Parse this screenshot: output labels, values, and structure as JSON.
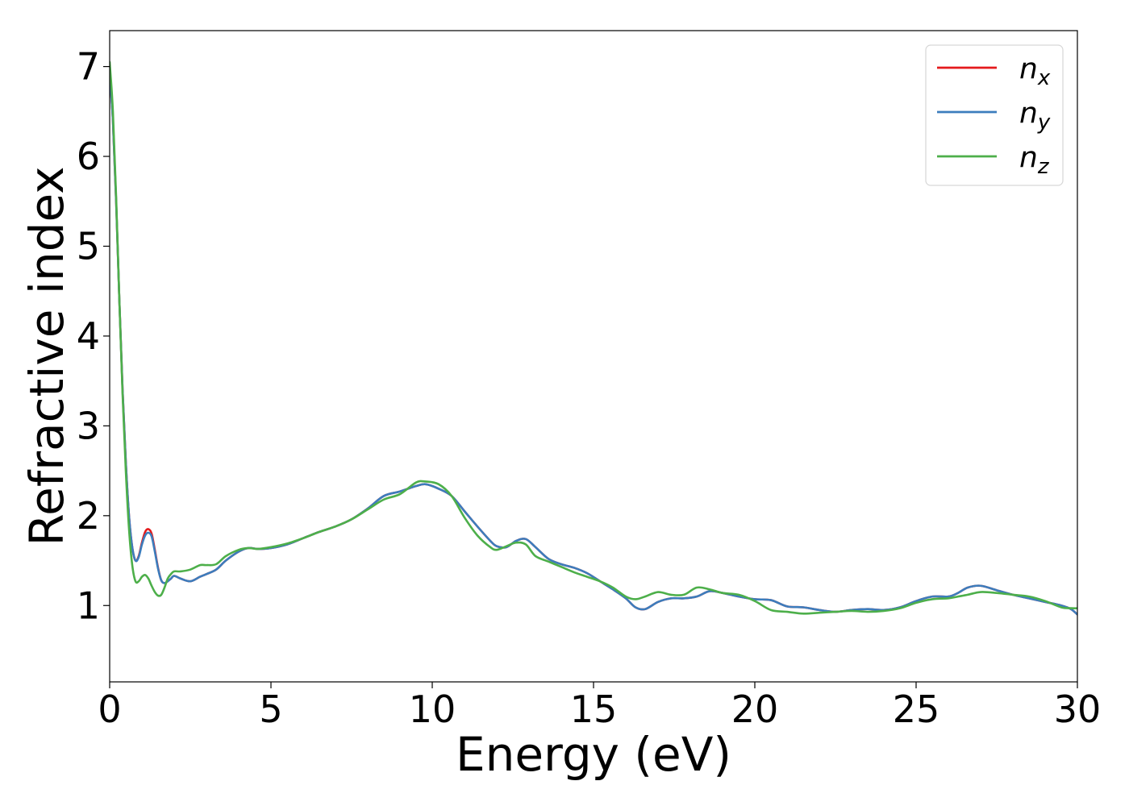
{
  "chart_data": {
    "type": "line",
    "title": "",
    "xlabel": "Energy (eV)",
    "ylabel": "Refractive index",
    "xlim": [
      0,
      30
    ],
    "ylim": [
      0.15,
      7.4
    ],
    "xticks": [
      0,
      5,
      10,
      15,
      20,
      25,
      30
    ],
    "yticks": [
      1,
      2,
      3,
      4,
      5,
      6,
      7
    ],
    "grid": false,
    "legend_position": "top-right",
    "series": [
      {
        "name": "n_x",
        "label_base": "n",
        "label_sub": "x",
        "color": "#e41a1c",
        "x": [
          0,
          0.1,
          0.2,
          0.3,
          0.4,
          0.5,
          0.6,
          0.7,
          0.8,
          0.9,
          1.0,
          1.1,
          1.2,
          1.3,
          1.4,
          1.5,
          1.6,
          1.7,
          1.8,
          1.9,
          2.0,
          2.2,
          2.5,
          2.8,
          3.0,
          3.3,
          3.6,
          4.0,
          4.3,
          4.6,
          5.0,
          5.5,
          6.0,
          6.5,
          7.0,
          7.5,
          8.0,
          8.5,
          9.0,
          9.5,
          9.8,
          10.2,
          10.6,
          11.0,
          11.4,
          11.8,
          12.0,
          12.3,
          12.6,
          12.9,
          13.2,
          13.6,
          14.0,
          14.4,
          14.8,
          15.2,
          15.6,
          16.0,
          16.3,
          16.6,
          17.0,
          17.4,
          17.8,
          18.2,
          18.6,
          19.0,
          19.5,
          20.0,
          20.5,
          21.0,
          21.5,
          22.0,
          22.5,
          23.0,
          23.5,
          24.0,
          24.5,
          25.0,
          25.5,
          26.0,
          26.3,
          26.6,
          27.0,
          27.5,
          28.0,
          28.5,
          29.0,
          29.5,
          29.8,
          30.0
        ],
        "y": [
          6.9,
          6.4,
          5.5,
          4.4,
          3.4,
          2.6,
          2.0,
          1.65,
          1.5,
          1.55,
          1.7,
          1.82,
          1.85,
          1.8,
          1.62,
          1.42,
          1.28,
          1.25,
          1.27,
          1.3,
          1.33,
          1.3,
          1.27,
          1.32,
          1.35,
          1.4,
          1.5,
          1.6,
          1.64,
          1.63,
          1.64,
          1.68,
          1.75,
          1.82,
          1.88,
          1.96,
          2.08,
          2.22,
          2.27,
          2.33,
          2.35,
          2.3,
          2.22,
          2.05,
          1.88,
          1.72,
          1.66,
          1.65,
          1.72,
          1.74,
          1.65,
          1.52,
          1.46,
          1.42,
          1.36,
          1.27,
          1.18,
          1.08,
          0.98,
          0.96,
          1.04,
          1.08,
          1.08,
          1.1,
          1.16,
          1.14,
          1.1,
          1.07,
          1.06,
          0.99,
          0.98,
          0.95,
          0.93,
          0.95,
          0.96,
          0.95,
          0.98,
          1.05,
          1.1,
          1.1,
          1.14,
          1.2,
          1.22,
          1.17,
          1.12,
          1.08,
          1.04,
          1.0,
          0.96,
          0.9
        ]
      },
      {
        "name": "n_y",
        "label_base": "n",
        "label_sub": "y",
        "color": "#3c7dbd",
        "x": [
          0,
          0.1,
          0.2,
          0.3,
          0.4,
          0.5,
          0.6,
          0.7,
          0.8,
          0.9,
          1.0,
          1.1,
          1.2,
          1.3,
          1.4,
          1.5,
          1.6,
          1.7,
          1.8,
          1.9,
          2.0,
          2.2,
          2.5,
          2.8,
          3.0,
          3.3,
          3.6,
          4.0,
          4.3,
          4.6,
          5.0,
          5.5,
          6.0,
          6.5,
          7.0,
          7.5,
          8.0,
          8.5,
          9.0,
          9.5,
          9.8,
          10.2,
          10.6,
          11.0,
          11.4,
          11.8,
          12.0,
          12.3,
          12.6,
          12.9,
          13.2,
          13.6,
          14.0,
          14.4,
          14.8,
          15.2,
          15.6,
          16.0,
          16.3,
          16.6,
          17.0,
          17.4,
          17.8,
          18.2,
          18.6,
          19.0,
          19.5,
          20.0,
          20.5,
          21.0,
          21.5,
          22.0,
          22.5,
          23.0,
          23.5,
          24.0,
          24.5,
          25.0,
          25.5,
          26.0,
          26.3,
          26.6,
          27.0,
          27.5,
          28.0,
          28.5,
          29.0,
          29.5,
          29.8,
          30.0
        ],
        "y": [
          6.9,
          6.4,
          5.5,
          4.4,
          3.4,
          2.6,
          2.0,
          1.65,
          1.5,
          1.54,
          1.68,
          1.78,
          1.81,
          1.77,
          1.6,
          1.41,
          1.28,
          1.25,
          1.27,
          1.3,
          1.33,
          1.3,
          1.27,
          1.32,
          1.35,
          1.4,
          1.5,
          1.6,
          1.64,
          1.63,
          1.64,
          1.68,
          1.75,
          1.82,
          1.88,
          1.96,
          2.08,
          2.22,
          2.27,
          2.33,
          2.35,
          2.3,
          2.22,
          2.05,
          1.88,
          1.72,
          1.66,
          1.65,
          1.72,
          1.74,
          1.65,
          1.52,
          1.46,
          1.42,
          1.36,
          1.27,
          1.18,
          1.08,
          0.98,
          0.96,
          1.04,
          1.08,
          1.08,
          1.1,
          1.16,
          1.14,
          1.1,
          1.07,
          1.06,
          0.99,
          0.98,
          0.95,
          0.93,
          0.95,
          0.96,
          0.95,
          0.98,
          1.05,
          1.1,
          1.1,
          1.14,
          1.2,
          1.22,
          1.17,
          1.12,
          1.08,
          1.04,
          1.0,
          0.96,
          0.9
        ]
      },
      {
        "name": "n_z",
        "label_base": "n",
        "label_sub": "z",
        "color": "#4daf4a",
        "x": [
          0,
          0.1,
          0.2,
          0.3,
          0.4,
          0.5,
          0.6,
          0.7,
          0.8,
          0.9,
          1.0,
          1.1,
          1.2,
          1.3,
          1.4,
          1.5,
          1.6,
          1.7,
          1.8,
          1.9,
          2.0,
          2.2,
          2.5,
          2.8,
          3.0,
          3.3,
          3.6,
          4.0,
          4.3,
          4.6,
          5.0,
          5.5,
          6.0,
          6.5,
          7.0,
          7.5,
          8.0,
          8.5,
          9.0,
          9.5,
          9.8,
          10.2,
          10.6,
          11.0,
          11.4,
          11.8,
          12.0,
          12.3,
          12.6,
          12.9,
          13.2,
          13.6,
          14.0,
          14.4,
          14.8,
          15.2,
          15.6,
          16.0,
          16.3,
          16.6,
          17.0,
          17.4,
          17.8,
          18.2,
          18.6,
          19.0,
          19.5,
          20.0,
          20.5,
          21.0,
          21.5,
          22.0,
          22.5,
          23.0,
          23.5,
          24.0,
          24.5,
          25.0,
          25.5,
          26.0,
          26.3,
          26.6,
          27.0,
          27.5,
          28.0,
          28.5,
          29.0,
          29.5,
          29.8,
          30.0
        ],
        "y": [
          7.05,
          6.5,
          5.55,
          4.4,
          3.35,
          2.5,
          1.85,
          1.45,
          1.27,
          1.27,
          1.32,
          1.34,
          1.3,
          1.22,
          1.15,
          1.11,
          1.12,
          1.2,
          1.3,
          1.35,
          1.38,
          1.38,
          1.4,
          1.45,
          1.45,
          1.46,
          1.55,
          1.62,
          1.64,
          1.63,
          1.65,
          1.69,
          1.75,
          1.82,
          1.88,
          1.96,
          2.07,
          2.18,
          2.24,
          2.37,
          2.38,
          2.35,
          2.22,
          1.98,
          1.78,
          1.65,
          1.62,
          1.66,
          1.7,
          1.68,
          1.55,
          1.49,
          1.43,
          1.37,
          1.32,
          1.27,
          1.2,
          1.1,
          1.07,
          1.1,
          1.15,
          1.12,
          1.12,
          1.2,
          1.18,
          1.14,
          1.12,
          1.05,
          0.95,
          0.93,
          0.91,
          0.92,
          0.93,
          0.94,
          0.93,
          0.94,
          0.97,
          1.03,
          1.07,
          1.08,
          1.1,
          1.12,
          1.15,
          1.14,
          1.12,
          1.1,
          1.05,
          0.98,
          0.97,
          0.97
        ]
      }
    ]
  }
}
